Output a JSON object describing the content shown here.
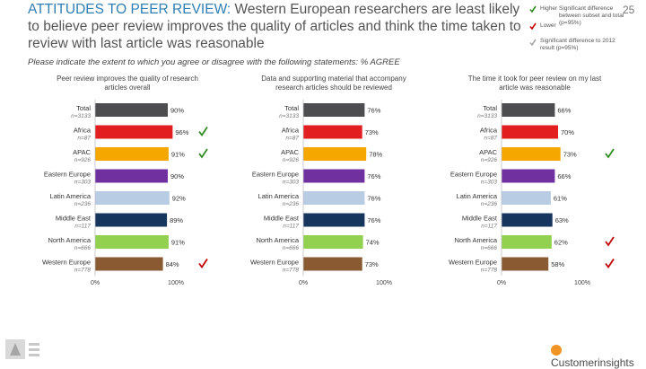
{
  "page": {
    "title_lead": "ATTITUDES TO PEER REVIEW:",
    "title_rest": " Western European researchers are least likely to believe peer review improves the quality of articles and think the time taken to review with last article was reasonable",
    "subtitle": "Please indicate the extent to which you agree or disagree with the following statements: % AGREE",
    "page_number": "25",
    "brand": "Customerinsights"
  },
  "legend": {
    "higher": "Higher",
    "lower": "Lower",
    "sig_text": "Significant difference between subset and total (p=95%)",
    "sig2012_text": "Significant difference to 2012 result (p=95%)"
  },
  "colors": {
    "Total": "#4d4d4f",
    "Africa": "#e31e1e",
    "APAC": "#f5a700",
    "Eastern Europe": "#7030a0",
    "Latin America": "#b8cce4",
    "Middle East": "#17365d",
    "North America": "#92d050",
    "Western Europe": "#8a5a32",
    "higher_check": "#2e8b1f",
    "lower_check": "#c00000",
    "prior_check": "#a6a6a6"
  },
  "chart_data": [
    {
      "type": "bar",
      "orientation": "horizontal",
      "title": "Peer review improves the quality of research articles overall",
      "categories": [
        "Total",
        "Africa",
        "APAC",
        "Eastern Europe",
        "Latin America",
        "Middle East",
        "North America",
        "Western Europe"
      ],
      "bases": [
        "n=3133",
        "n=87",
        "n=926",
        "n=303",
        "n=236",
        "n=117",
        "n=666",
        "n=778"
      ],
      "values": [
        90,
        96,
        91,
        90,
        92,
        89,
        91,
        84
      ],
      "value_labels": [
        "90%",
        "96%",
        "91%",
        "90%",
        "92%",
        "89%",
        "91%",
        "84%"
      ],
      "markers": [
        "",
        "higher",
        "higher",
        "",
        "",
        "",
        "",
        "lower"
      ],
      "xlim": [
        0,
        100
      ],
      "ticks": [
        "0%",
        "100%"
      ]
    },
    {
      "type": "bar",
      "orientation": "horizontal",
      "title": "Data and supporting material that accompany research articles should be reviewed",
      "categories": [
        "Total",
        "Africa",
        "APAC",
        "Eastern Europe",
        "Latin America",
        "Middle East",
        "North America",
        "Western Europe"
      ],
      "bases": [
        "n=3133",
        "n=87",
        "n=926",
        "n=303",
        "n=236",
        "n=117",
        "n=666",
        "n=778"
      ],
      "values": [
        76,
        73,
        78,
        76,
        76,
        76,
        74,
        73
      ],
      "value_labels": [
        "76%",
        "73%",
        "78%",
        "76%",
        "76%",
        "76%",
        "74%",
        "73%"
      ],
      "markers": [
        "",
        "",
        "",
        "",
        "",
        "",
        "",
        ""
      ],
      "xlim": [
        0,
        100
      ],
      "ticks": [
        "0%",
        "100%"
      ]
    },
    {
      "type": "bar",
      "orientation": "horizontal",
      "title": "The time it took for peer review on my last article was reasonable",
      "categories": [
        "Total",
        "Africa",
        "APAC",
        "Eastern Europe",
        "Latin America",
        "Middle East",
        "North America",
        "Western Europe"
      ],
      "bases": [
        "n=3133",
        "n=87",
        "n=926",
        "n=303",
        "n=236",
        "n=117",
        "n=666",
        "n=778"
      ],
      "values": [
        66,
        70,
        73,
        66,
        61,
        63,
        62,
        58
      ],
      "value_labels": [
        "66%",
        "70%",
        "73%",
        "66%",
        "61%",
        "63%",
        "62%",
        "58%"
      ],
      "markers": [
        "",
        "",
        "higher",
        "",
        "",
        "",
        "lower",
        "lower"
      ],
      "xlim": [
        0,
        100
      ],
      "ticks": [
        "0%",
        "100%"
      ]
    }
  ]
}
